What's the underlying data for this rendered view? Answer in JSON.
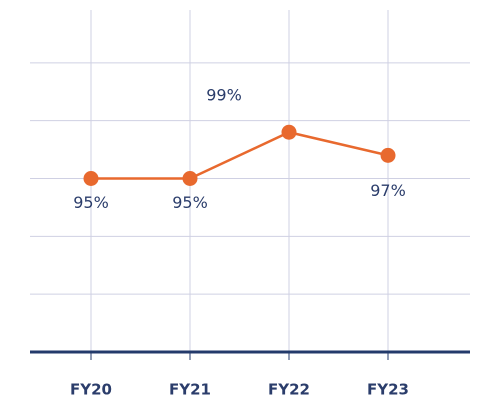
{
  "chart_data": {
    "type": "line",
    "categories": [
      "FY20",
      "FY21",
      "FY22",
      "FY23"
    ],
    "series": [
      {
        "color": "#e8692e",
        "values": [
          95,
          95,
          99,
          97
        ],
        "value_labels": [
          "95%",
          "95%",
          "99%",
          "97%"
        ]
      }
    ],
    "ylim": [
      80,
      110
    ],
    "yticks": [
      80,
      85,
      90,
      95,
      100,
      105
    ],
    "grid": true
  }
}
